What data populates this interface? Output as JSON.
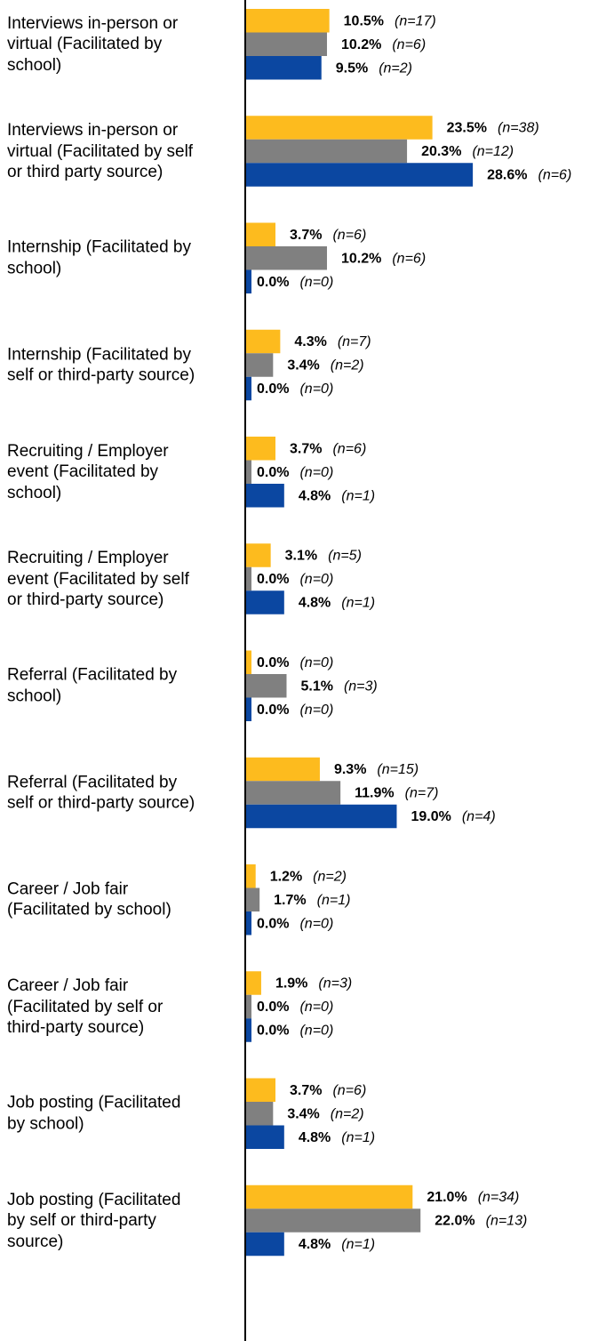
{
  "chart_data": {
    "type": "bar",
    "orientation": "horizontal",
    "grid": false,
    "legend": "none",
    "xlim": [
      0,
      30
    ],
    "series_colors": [
      "#FDBB1E",
      "#808080",
      "#0B47A1"
    ],
    "categories": [
      "Interviews in-person or\nvirtual (Facilitated by\nschool)",
      "Interviews in-person or\nvirtual (Facilitated by self\nor third party source)",
      "Internship (Facilitated by\nschool)",
      "Internship (Facilitated by\nself or third-party source)",
      "Recruiting / Employer\nevent (Facilitated by\nschool)",
      "Recruiting / Employer\nevent (Facilitated by self\nor third-party source)",
      "Referral (Facilitated by\nschool)",
      "Referral (Facilitated by\nself or third-party source)",
      "Career / Job fair\n(Facilitated by school)",
      "Career / Job fair\n(Facilitated by self or\nthird-party source)",
      "Job posting (Facilitated\nby school)",
      "Job posting (Facilitated\nby self or third-party\nsource)"
    ],
    "series": [
      {
        "values": [
          10.5,
          23.5,
          3.7,
          4.3,
          3.7,
          3.1,
          0.0,
          9.3,
          1.2,
          1.9,
          3.7,
          21.0
        ],
        "pct_labels": [
          "10.5%",
          "23.5%",
          "3.7%",
          "4.3%",
          "3.7%",
          "3.1%",
          "0.0%",
          "9.3%",
          "1.2%",
          "1.9%",
          "3.7%",
          "21.0%"
        ],
        "n_labels": [
          "(n=17)",
          "(n=38)",
          "(n=6)",
          "(n=7)",
          "(n=6)",
          "(n=5)",
          "(n=0)",
          "(n=15)",
          "(n=2)",
          "(n=3)",
          "(n=6)",
          "(n=34)"
        ]
      },
      {
        "values": [
          10.2,
          20.3,
          10.2,
          3.4,
          0.0,
          0.0,
          5.1,
          11.9,
          1.7,
          0.0,
          3.4,
          22.0
        ],
        "pct_labels": [
          "10.2%",
          "20.3%",
          "10.2%",
          "3.4%",
          "0.0%",
          "0.0%",
          "5.1%",
          "11.9%",
          "1.7%",
          "0.0%",
          "3.4%",
          "22.0%"
        ],
        "n_labels": [
          "(n=6)",
          "(n=12)",
          "(n=6)",
          "(n=2)",
          "(n=0)",
          "(n=0)",
          "(n=3)",
          "(n=7)",
          "(n=1)",
          "(n=0)",
          "(n=2)",
          "(n=13)"
        ]
      },
      {
        "values": [
          9.5,
          28.6,
          0.0,
          0.0,
          4.8,
          4.8,
          0.0,
          19.0,
          0.0,
          0.0,
          4.8,
          4.8
        ],
        "pct_labels": [
          "9.5%",
          "28.6%",
          "0.0%",
          "0.0%",
          "4.8%",
          "4.8%",
          "0.0%",
          "19.0%",
          "0.0%",
          "0.0%",
          "4.8%",
          "4.8%"
        ],
        "n_labels": [
          "(n=2)",
          "(n=6)",
          "(n=0)",
          "(n=0)",
          "(n=1)",
          "(n=1)",
          "(n=0)",
          "(n=4)",
          "(n=0)",
          "(n=0)",
          "(n=1)",
          "(n=1)"
        ]
      }
    ]
  }
}
